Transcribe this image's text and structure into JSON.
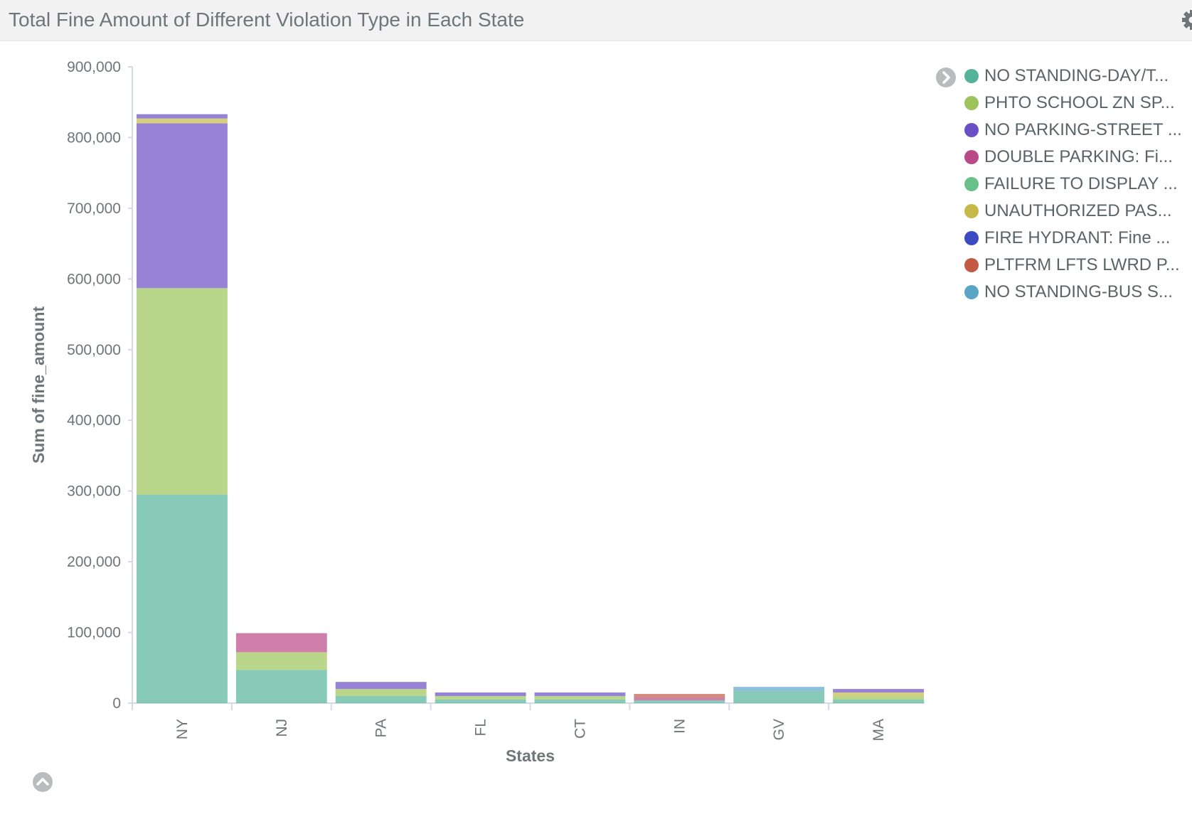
{
  "panel": {
    "title": "Total Fine Amount of Different Violation Type in Each State",
    "settings_icon": "gear-icon"
  },
  "legend": {
    "toggle_icon": "chevron-right-icon",
    "items": [
      {
        "label": "NO STANDING-DAY/T...",
        "color": "#54b399"
      },
      {
        "label": "PHTO SCHOOL ZN SP...",
        "color": "#9cc45a"
      },
      {
        "label": "NO PARKING-STREET ...",
        "color": "#6b4fc4"
      },
      {
        "label": "DOUBLE PARKING: Fi...",
        "color": "#b94a87"
      },
      {
        "label": "FAILURE TO DISPLAY ...",
        "color": "#6ac089"
      },
      {
        "label": "UNAUTHORIZED PAS...",
        "color": "#c6b94a"
      },
      {
        "label": "FIRE HYDRANT: Fine ...",
        "color": "#3d4bc3"
      },
      {
        "label": "PLTFRM LFTS LWRD P...",
        "color": "#c25a44"
      },
      {
        "label": "NO STANDING-BUS S...",
        "color": "#5aa5c6"
      }
    ]
  },
  "collapse_icon": "chevron-up-icon",
  "chart_data": {
    "type": "bar",
    "stacked": true,
    "xlabel": "States",
    "ylabel": "Sum of fine_amount",
    "ylim": [
      0,
      900000
    ],
    "yticks": [
      0,
      100000,
      200000,
      300000,
      400000,
      500000,
      600000,
      700000,
      800000,
      900000
    ],
    "ytick_labels": [
      "0",
      "100,000",
      "200,000",
      "300,000",
      "400,000",
      "500,000",
      "600,000",
      "700,000",
      "800,000",
      "900,000"
    ],
    "categories": [
      "NY",
      "NJ",
      "PA",
      "FL",
      "CT",
      "IN",
      "GV",
      "MA"
    ],
    "series": [
      {
        "name": "NO STANDING-DAY/T...",
        "color": "#54b399",
        "values": [
          295000,
          47000,
          10000,
          5000,
          5000,
          4000,
          17000,
          5000
        ]
      },
      {
        "name": "PHTO SCHOOL ZN SP...",
        "color": "#9cc45a",
        "values": [
          292000,
          25000,
          10000,
          5000,
          5000,
          0,
          0,
          5000
        ]
      },
      {
        "name": "NO PARKING-STREET ...",
        "color": "#6b4fc4",
        "values": [
          233000,
          0,
          10000,
          5000,
          5000,
          0,
          0,
          0
        ]
      },
      {
        "name": "DOUBLE PARKING: Fi...",
        "color": "#b94a87",
        "values": [
          0,
          27000,
          0,
          0,
          0,
          4000,
          0,
          0
        ]
      },
      {
        "name": "FAILURE TO DISPLAY ...",
        "color": "#6ac089",
        "values": [
          0,
          0,
          0,
          0,
          0,
          0,
          0,
          0
        ]
      },
      {
        "name": "UNAUTHORIZED PAS...",
        "color": "#c6b94a",
        "values": [
          7000,
          0,
          0,
          0,
          0,
          0,
          0,
          5000
        ]
      },
      {
        "name": "FIRE HYDRANT: Fine ...",
        "color": "#3d4bc3",
        "values": [
          0,
          0,
          0,
          0,
          0,
          0,
          0,
          0
        ]
      },
      {
        "name": "PLTFRM LFTS LWRD P...",
        "color": "#c25a44",
        "values": [
          0,
          0,
          0,
          0,
          0,
          5000,
          0,
          0
        ]
      },
      {
        "name": "NO STANDING-BUS S...",
        "color": "#5aa5c6",
        "values": [
          0,
          0,
          0,
          0,
          0,
          0,
          6000,
          0
        ]
      },
      {
        "name": "",
        "color": "#6b4fc4",
        "values": [
          6000,
          0,
          0,
          0,
          0,
          0,
          0,
          5000
        ]
      }
    ],
    "grid": false,
    "legend_position": "right"
  }
}
